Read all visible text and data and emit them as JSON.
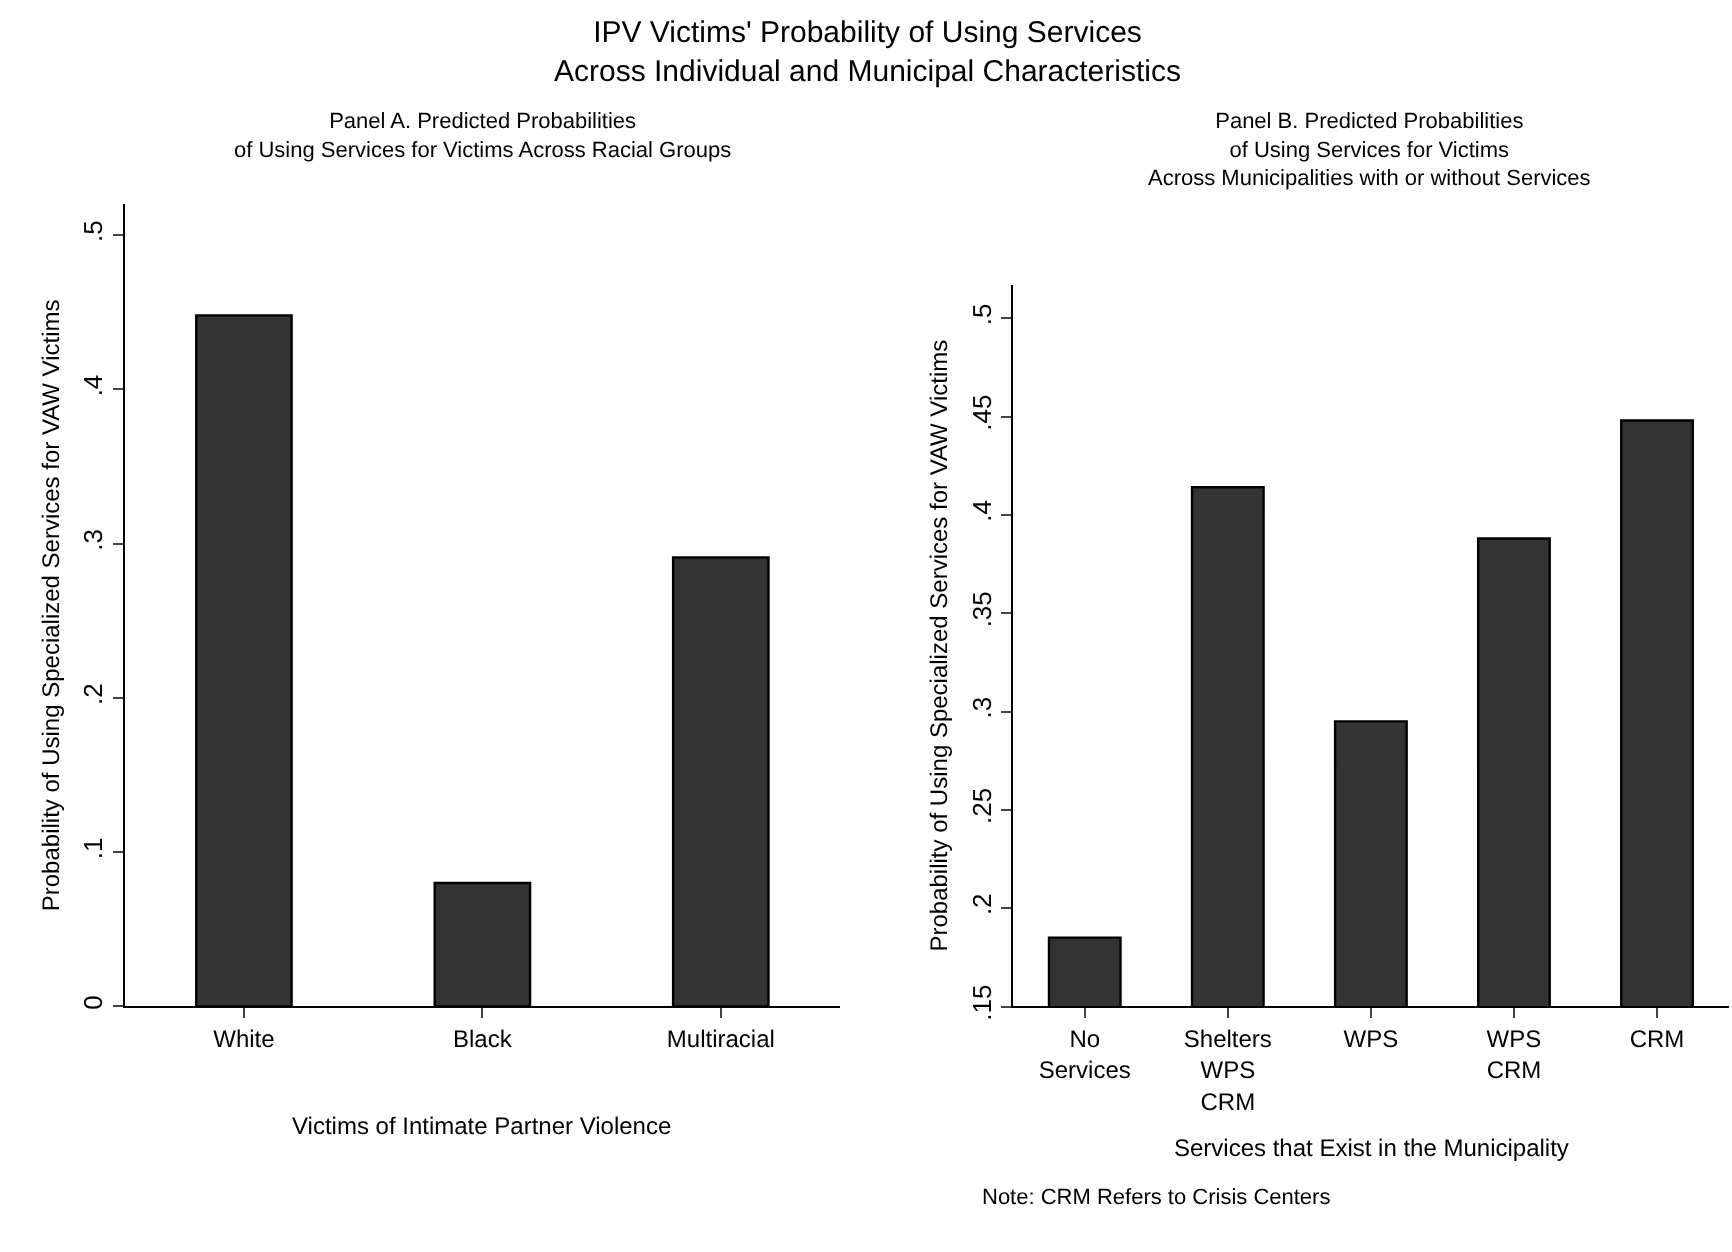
{
  "chart_data": [
    {
      "type": "bar",
      "title": "IPV Victims' Probability of Using Services\nAcross Individual and Municipal Characteristics",
      "subtitle": "Panel A. Predicted Probabilities\nof Using Services for Victims Across Racial Groups",
      "xlabel": "Victims of Intimate Partner Violence",
      "ylabel": "Probability of Using Specialized Services for VAW Victims",
      "categories": [
        "White",
        "Black",
        "Multiracial"
      ],
      "values": [
        0.448,
        0.08,
        0.291
      ],
      "color": "#333333",
      "ylim": [
        0,
        0.52
      ],
      "yticks": [
        {
          "value": 0,
          "label": "0"
        },
        {
          "value": 0.1,
          "label": ".1"
        },
        {
          "value": 0.2,
          "label": ".2"
        },
        {
          "value": 0.3,
          "label": ".3"
        },
        {
          "value": 0.4,
          "label": ".4"
        },
        {
          "value": 0.5,
          "label": ".5"
        }
      ]
    },
    {
      "type": "bar",
      "subtitle": "Panel B. Predicted Probabilities\nof Using Services for Victims\nAcross Municipalities with or without Services",
      "xlabel": "Services that Exist in the Municipality",
      "ylabel": "Probability of Using Specialized Services for VAW Victims",
      "categories": [
        "No\nServices",
        "Shelters\nWPS\nCRM",
        "WPS",
        "WPS\nCRM",
        "CRM"
      ],
      "values": [
        0.185,
        0.414,
        0.295,
        0.388,
        0.448
      ],
      "color": "#333333",
      "ylim": [
        0.15,
        0.517
      ],
      "yticks": [
        {
          "value": 0.15,
          "label": ".15"
        },
        {
          "value": 0.2,
          "label": ".2"
        },
        {
          "value": 0.25,
          "label": ".25"
        },
        {
          "value": 0.3,
          "label": ".3"
        },
        {
          "value": 0.35,
          "label": ".35"
        },
        {
          "value": 0.4,
          "label": ".4"
        },
        {
          "value": 0.45,
          "label": ".45"
        },
        {
          "value": 0.5,
          "label": ".5"
        }
      ],
      "annotations": [
        "Note: CRM Refers to Crisis Centers"
      ]
    }
  ]
}
